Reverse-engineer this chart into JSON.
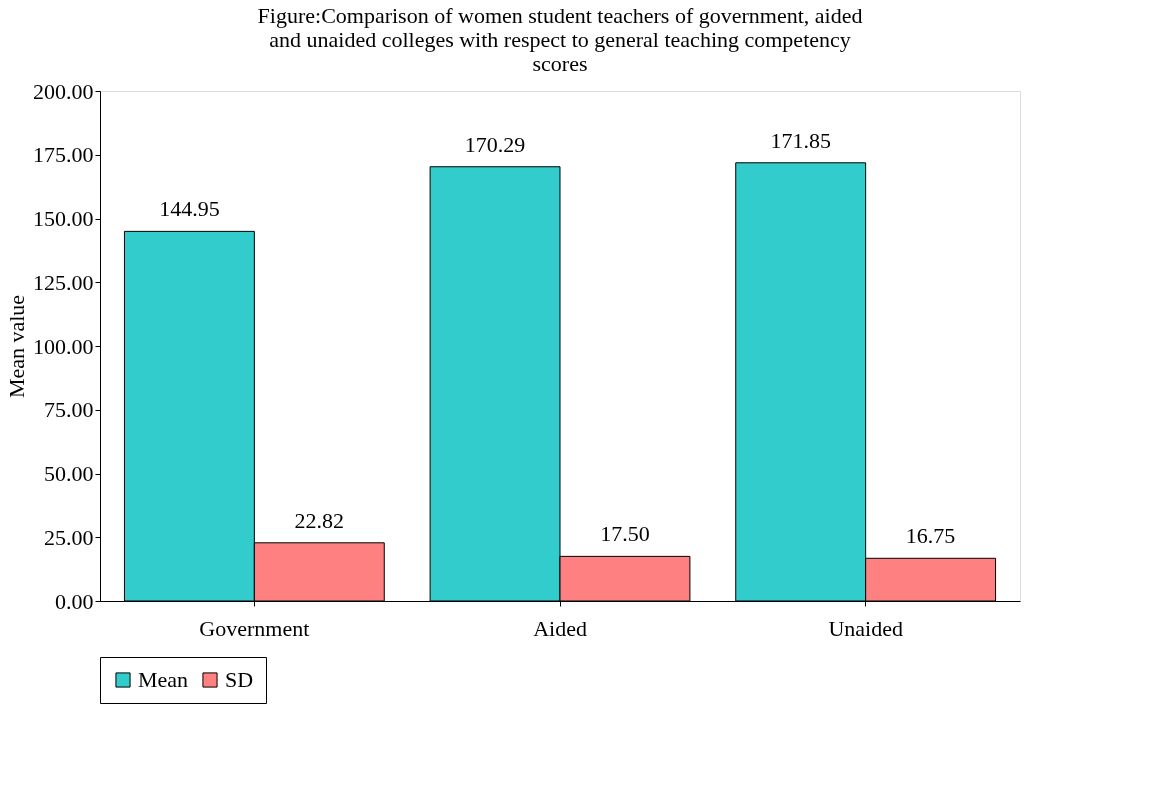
{
  "chart_data": {
    "type": "bar",
    "title": "Figure:Comparison of women student teachers of government, aided and unaided colleges with respect to general teaching competency scores",
    "ylabel": "Mean value",
    "categories": [
      "Government",
      "Aided",
      "Unaided"
    ],
    "series": [
      {
        "name": "Mean",
        "color": "#33cccc",
        "values": [
          144.95,
          170.29,
          171.85
        ],
        "value_labels": [
          "144.95",
          "170.29",
          "171.85"
        ]
      },
      {
        "name": "SD",
        "color": "#ff8080",
        "values": [
          22.82,
          17.5,
          16.75
        ],
        "value_labels": [
          "22.82",
          "17.50",
          "16.75"
        ]
      }
    ],
    "ylim": [
      0,
      200
    ],
    "yticks": [
      {
        "value": 0,
        "label": "0.00"
      },
      {
        "value": 25,
        "label": "25.00"
      },
      {
        "value": 50,
        "label": "50.00"
      },
      {
        "value": 75,
        "label": "75.00"
      },
      {
        "value": 100,
        "label": "100.00"
      },
      {
        "value": 125,
        "label": "125.00"
      },
      {
        "value": 150,
        "label": "150.00"
      },
      {
        "value": 175,
        "label": "175.00"
      },
      {
        "value": 200,
        "label": "200.00"
      }
    ],
    "grid": false,
    "legend": "bottom"
  }
}
